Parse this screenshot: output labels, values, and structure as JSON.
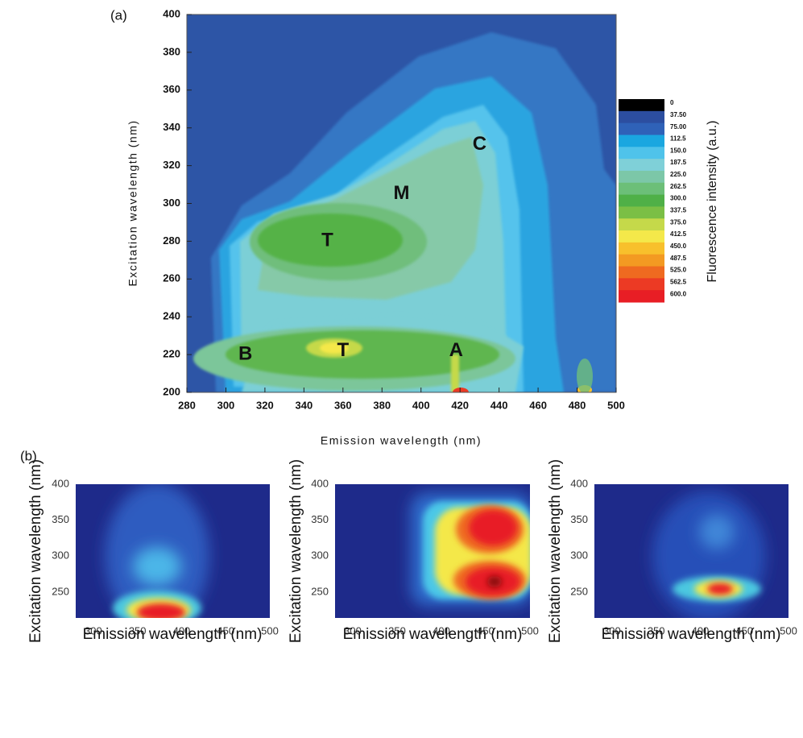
{
  "chart_data": [
    {
      "type": "contour",
      "panel_label": "(a)",
      "xlabel": "Emission wavelength (nm)",
      "ylabel": "Excitation wavelength (nm)",
      "xlim": [
        280,
        500
      ],
      "ylim": [
        200,
        400
      ],
      "xticks": [
        280,
        300,
        320,
        340,
        360,
        380,
        400,
        420,
        440,
        460,
        480,
        500
      ],
      "yticks": [
        200,
        220,
        240,
        260,
        280,
        300,
        320,
        340,
        360,
        380,
        400
      ],
      "colorbar": {
        "label": "Fluorescence intensity (a.u.)",
        "levels": [
          0,
          {
            "value": 37.5,
            "label": "37.50"
          },
          {
            "value": 75,
            "label": "75.00"
          },
          112.5,
          {
            "value": 150,
            "label": "150.0"
          },
          187.5,
          {
            "value": 225,
            "label": "225.0"
          },
          262.5,
          {
            "value": 300,
            "label": "300.0"
          },
          337.5,
          {
            "value": 375,
            "label": "375.0"
          },
          412.5,
          {
            "value": 450,
            "label": "450.0"
          },
          487.5,
          {
            "value": 525,
            "label": "525.0"
          },
          562.5,
          {
            "value": 600,
            "label": "600.0"
          }
        ],
        "colors": [
          "#000000",
          "#2c4ea0",
          "#2f62b8",
          "#1aa7e0",
          "#4fc3ea",
          "#7fd0d8",
          "#7cc7a8",
          "#6cbf78",
          "#4fb047",
          "#7bbf45",
          "#c5d94a",
          "#f4e84a",
          "#f8c02c",
          "#f39a22",
          "#ef6a20",
          "#ec3a24",
          "#e81e25"
        ]
      },
      "annotations": [
        {
          "text": "C",
          "x": 430,
          "y": 331
        },
        {
          "text": "M",
          "x": 390,
          "y": 305
        },
        {
          "text": "T",
          "x": 352,
          "y": 280
        },
        {
          "text": "B",
          "x": 310,
          "y": 220
        },
        {
          "text": "T",
          "x": 360,
          "y": 222
        },
        {
          "text": "A",
          "x": 418,
          "y": 222
        }
      ]
    },
    {
      "type": "heatmap",
      "panel_label": "(b)",
      "xlabel": "Emission wavelength (nm)",
      "ylabel": "Excitation wavelength (nm)",
      "xlim": [
        280,
        500
      ],
      "ylim": [
        214,
        400
      ],
      "xticks": [
        300,
        350,
        400,
        450,
        500
      ],
      "yticks": [
        250,
        300,
        350,
        400
      ]
    },
    {
      "type": "heatmap",
      "xlabel": "Emission wavelength (nm)",
      "ylabel": "Excitation wavelength (nm)",
      "xlim": [
        280,
        500
      ],
      "ylim": [
        214,
        400
      ],
      "xticks": [
        300,
        350,
        400,
        450,
        500
      ],
      "yticks": [
        250,
        300,
        350,
        400
      ]
    },
    {
      "type": "heatmap",
      "xlabel": "Emission wavelength (nm)",
      "ylabel": "Excitation wavelength (nm)",
      "xlim": [
        280,
        500
      ],
      "ylim": [
        214,
        400
      ],
      "xticks": [
        300,
        350,
        400,
        450,
        500
      ],
      "yticks": [
        250,
        300,
        350,
        400
      ]
    }
  ]
}
